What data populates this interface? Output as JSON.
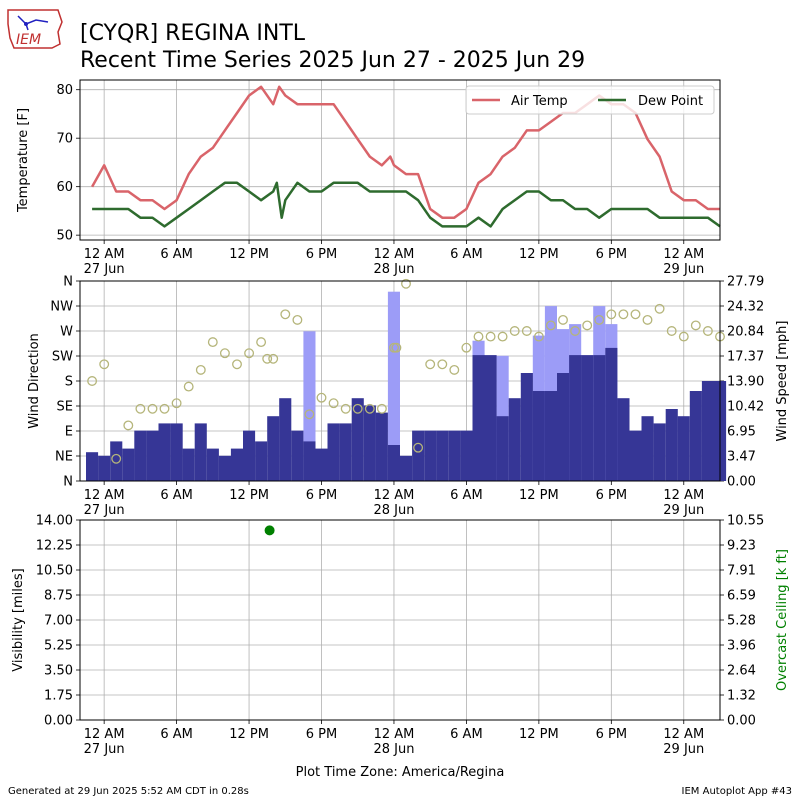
{
  "header": {
    "title_line1": "[CYQR] REGINA INTL",
    "title_line2": "Recent Time Series 2025 Jun 27 - 2025 Jun 29",
    "logo_text": "IEM"
  },
  "footer": {
    "generated": "Generated at 29 Jun 2025 5:52 AM CDT in 0.28s",
    "app": "IEM Autoplot App #43",
    "timezone_label": "Plot Time Zone: America/Regina"
  },
  "colors": {
    "air_temp": "#d9646a",
    "dew_point": "#2e6b2e",
    "gust_bar": "#9c9cf7",
    "wind_bar": "#363696",
    "wind_dir_marker": "#b5b57a",
    "ceiling": "#008000",
    "grid": "#b0b0b0"
  },
  "chart_data": [
    {
      "type": "line",
      "panel": "temperature",
      "ylabel": "Temperature [F]",
      "ylim": [
        49,
        82
      ],
      "yticks": [
        50,
        60,
        70,
        80
      ],
      "xlim": [
        -2,
        51
      ],
      "grid": true,
      "legend_placement": "top-right",
      "xticks": [
        {
          "x": 0,
          "label": "12 AM",
          "sub": "27 Jun"
        },
        {
          "x": 6,
          "label": "6 AM",
          "sub": ""
        },
        {
          "x": 12,
          "label": "12 PM",
          "sub": ""
        },
        {
          "x": 18,
          "label": "6 PM",
          "sub": ""
        },
        {
          "x": 24,
          "label": "12 AM",
          "sub": "28 Jun"
        },
        {
          "x": 30,
          "label": "6 AM",
          "sub": ""
        },
        {
          "x": 36,
          "label": "12 PM",
          "sub": ""
        },
        {
          "x": 42,
          "label": "6 PM",
          "sub": ""
        },
        {
          "x": 48,
          "label": "12 AM",
          "sub": "29 Jun"
        }
      ],
      "series": [
        {
          "name": "Air Temp",
          "x": [
            -1,
            0,
            1,
            2,
            3,
            4,
            5,
            6,
            7,
            8,
            9,
            10,
            11,
            12,
            13,
            14,
            14.5,
            15,
            16,
            17,
            18,
            19,
            20,
            21,
            22,
            23,
            23.7,
            24,
            25,
            26,
            27,
            28,
            29,
            30,
            31,
            32,
            33,
            34,
            35,
            36,
            37,
            38,
            39,
            40,
            41,
            42,
            43,
            44,
            45,
            46,
            47,
            48,
            49,
            50,
            51
          ],
          "y": [
            60,
            64.4,
            59,
            59,
            57.2,
            57.2,
            55.4,
            57.2,
            62.6,
            66.2,
            68,
            71.6,
            75.2,
            78.8,
            80.6,
            77,
            80.6,
            78.8,
            77,
            77,
            77,
            77,
            73.4,
            69.8,
            66.2,
            64.4,
            66.2,
            64.4,
            62.6,
            62.6,
            55.4,
            53.6,
            53.6,
            55.4,
            60.8,
            62.6,
            66.2,
            68,
            71.6,
            71.6,
            73.4,
            75.2,
            75.2,
            77,
            78.8,
            77,
            77,
            75.2,
            69.8,
            66.2,
            59,
            57.2,
            57.2,
            55.4,
            55.4
          ]
        },
        {
          "name": "Dew Point",
          "x": [
            -1,
            0,
            1,
            2,
            3,
            4,
            5,
            6,
            7,
            8,
            9,
            10,
            11,
            12,
            13,
            14,
            14.3,
            14.7,
            15,
            16,
            17,
            18,
            19,
            20,
            21,
            22,
            23,
            24,
            25,
            26,
            27,
            28,
            29,
            30,
            31,
            32,
            33,
            34,
            35,
            36,
            37,
            38,
            39,
            40,
            41,
            42,
            43,
            44,
            45,
            46,
            47,
            48,
            49,
            50,
            51
          ],
          "y": [
            55.4,
            55.4,
            55.4,
            55.4,
            53.6,
            53.6,
            51.8,
            53.6,
            55.4,
            57.2,
            59,
            60.8,
            60.8,
            59,
            57.2,
            59,
            60.8,
            53.6,
            57.2,
            60.8,
            59,
            59,
            60.8,
            60.8,
            60.8,
            59,
            59,
            59,
            59,
            57.2,
            53.6,
            51.8,
            51.8,
            51.8,
            53.6,
            51.8,
            55.4,
            57.2,
            59,
            59,
            57.2,
            57.2,
            55.4,
            55.4,
            53.6,
            55.4,
            55.4,
            55.4,
            55.4,
            53.6,
            53.6,
            53.6,
            53.6,
            53.6,
            51.8
          ]
        }
      ]
    },
    {
      "type": "bar",
      "panel": "wind",
      "ylabel_left": "Wind Direction",
      "ylabel_right": "Wind Speed [mph]",
      "dir_labels": [
        "N",
        "NE",
        "E",
        "SE",
        "S",
        "SW",
        "W",
        "NW",
        "N"
      ],
      "ylim_left": [
        0,
        360
      ],
      "ylim_right": [
        0,
        27.79
      ],
      "speed_ticks": [
        "0.00",
        "3.47",
        "6.95",
        "10.42",
        "13.90",
        "17.37",
        "20.84",
        "24.32",
        "27.79"
      ],
      "xlim": [
        -2,
        51
      ],
      "grid": true,
      "hours": [
        -1,
        0,
        1,
        2,
        3,
        4,
        5,
        6,
        7,
        8,
        9,
        10,
        11,
        12,
        13,
        14,
        15,
        16,
        17,
        18,
        19,
        20,
        21,
        22,
        23,
        24,
        25,
        26,
        27,
        28,
        29,
        30,
        31,
        32,
        33,
        34,
        35,
        36,
        37,
        38,
        39,
        40,
        41,
        42,
        43,
        44,
        45,
        46,
        47,
        48,
        49,
        50,
        51
      ],
      "series": [
        {
          "name": "wind_speed",
          "values": [
            4,
            3.5,
            5.5,
            4.5,
            7,
            7,
            8,
            8,
            4.5,
            8,
            4.5,
            3.5,
            4.5,
            7,
            5.5,
            9,
            11.5,
            7,
            5.5,
            4.5,
            8,
            8,
            11.5,
            10.5,
            9.5,
            5,
            3.5,
            7,
            7,
            7,
            7,
            7,
            17.5,
            17.5,
            9,
            11.5,
            15,
            12.5,
            12.5,
            15,
            17.5,
            17.5,
            17.5,
            18.5,
            11.5,
            7,
            9,
            8,
            10,
            9,
            12.5,
            13.9,
            13.9
          ]
        },
        {
          "name": "wind_gust",
          "values": [
            0,
            0,
            0,
            0,
            0,
            0,
            0,
            0,
            0,
            0,
            0,
            0,
            0,
            0,
            0,
            0,
            0,
            0,
            20.8,
            0,
            0,
            0,
            0,
            0,
            0,
            26.3,
            0,
            0,
            0,
            0,
            0,
            0,
            19.5,
            17.4,
            17.4,
            0,
            0,
            20.2,
            24.3,
            21.1,
            21.8,
            0,
            24.3,
            21.8,
            0,
            0,
            0,
            0,
            0,
            0,
            0,
            0,
            0
          ]
        },
        {
          "name": "wind_direction",
          "x": [
            -1,
            0,
            1,
            2,
            3,
            4,
            5,
            6,
            7,
            8,
            9,
            10,
            11,
            12,
            13,
            13.5,
            14,
            15,
            16,
            17,
            18,
            19,
            20,
            21,
            22,
            23,
            24,
            24.2,
            25,
            26,
            27,
            28,
            29,
            30,
            31,
            32,
            33,
            34,
            35,
            36,
            37,
            38,
            39,
            40,
            41,
            42,
            43,
            44,
            45,
            46,
            47,
            48,
            49,
            50,
            51
          ],
          "values": [
            180,
            210,
            40,
            100,
            130,
            130,
            130,
            140,
            170,
            200,
            250,
            230,
            210,
            230,
            250,
            220,
            220,
            300,
            290,
            120,
            150,
            140,
            130,
            130,
            130,
            130,
            240,
            240,
            355,
            60,
            210,
            210,
            200,
            240,
            260,
            260,
            260,
            270,
            270,
            260,
            280,
            290,
            270,
            280,
            290,
            300,
            300,
            300,
            290,
            310,
            270,
            260,
            280,
            270,
            260
          ]
        }
      ]
    },
    {
      "type": "scatter",
      "panel": "visibility",
      "ylabel_left": "Visibility [miles]",
      "ylabel_right": "Overcast Ceiling [k ft]",
      "ylim_left": [
        0,
        14
      ],
      "ylim_right": [
        0,
        10.55
      ],
      "vis_ticks": [
        "0.00",
        "1.75",
        "3.50",
        "5.25",
        "7.00",
        "8.75",
        "10.50",
        "12.25",
        "14.00"
      ],
      "ceiling_ticks": [
        "0.00",
        "1.32",
        "2.64",
        "3.96",
        "5.28",
        "6.59",
        "7.91",
        "9.23",
        "10.55"
      ],
      "xlim": [
        -2,
        51
      ],
      "grid": true,
      "xlabel": "Plot Time Zone: America/Regina",
      "series": [
        {
          "name": "ceiling",
          "x": [
            13.7
          ],
          "values": [
            10.0
          ]
        }
      ]
    }
  ]
}
